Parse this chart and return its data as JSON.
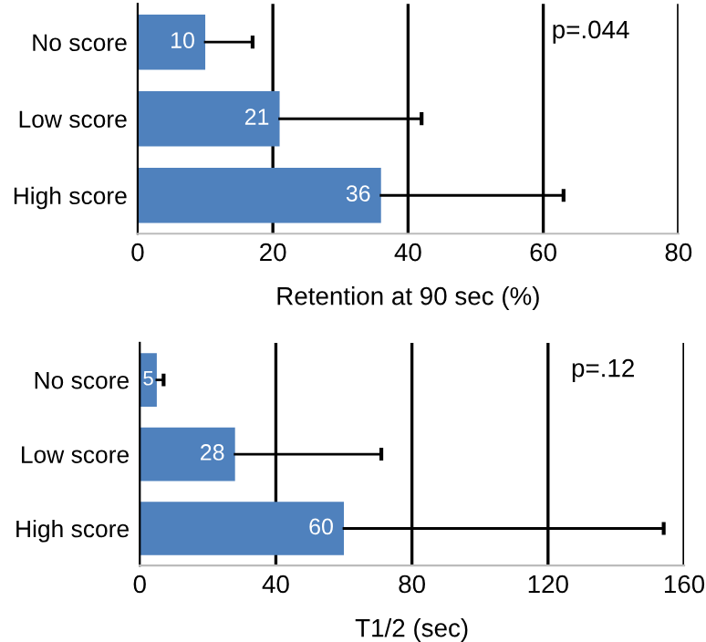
{
  "chart_data": [
    {
      "type": "bar",
      "orientation": "horizontal",
      "categories": [
        "No score",
        "Low score",
        "High score"
      ],
      "values": [
        10,
        21,
        36
      ],
      "color": "#4f81bd",
      "errors": [
        [
          10,
          17
        ],
        [
          21,
          42
        ],
        [
          36,
          63
        ]
      ],
      "data_labels": true,
      "xlabel": "Retention at 90 sec (%)",
      "xlim": [
        0,
        80
      ],
      "xticks": [
        0,
        20,
        40,
        60,
        80
      ],
      "grid": "x",
      "legend": false,
      "annotations": [
        "p=.044"
      ]
    },
    {
      "type": "bar",
      "orientation": "horizontal",
      "categories": [
        "No score",
        "Low score",
        "High score"
      ],
      "values": [
        5,
        28,
        60
      ],
      "color": "#4f81bd",
      "errors": [
        [
          5,
          7
        ],
        [
          28,
          71
        ],
        [
          60,
          154
        ]
      ],
      "data_labels": true,
      "xlabel": "T1/2 (sec)",
      "xlim": [
        0,
        160
      ],
      "xticks": [
        0,
        40,
        80,
        120,
        160
      ],
      "grid": "x",
      "legend": false,
      "annotations": [
        "p=.12"
      ]
    }
  ]
}
